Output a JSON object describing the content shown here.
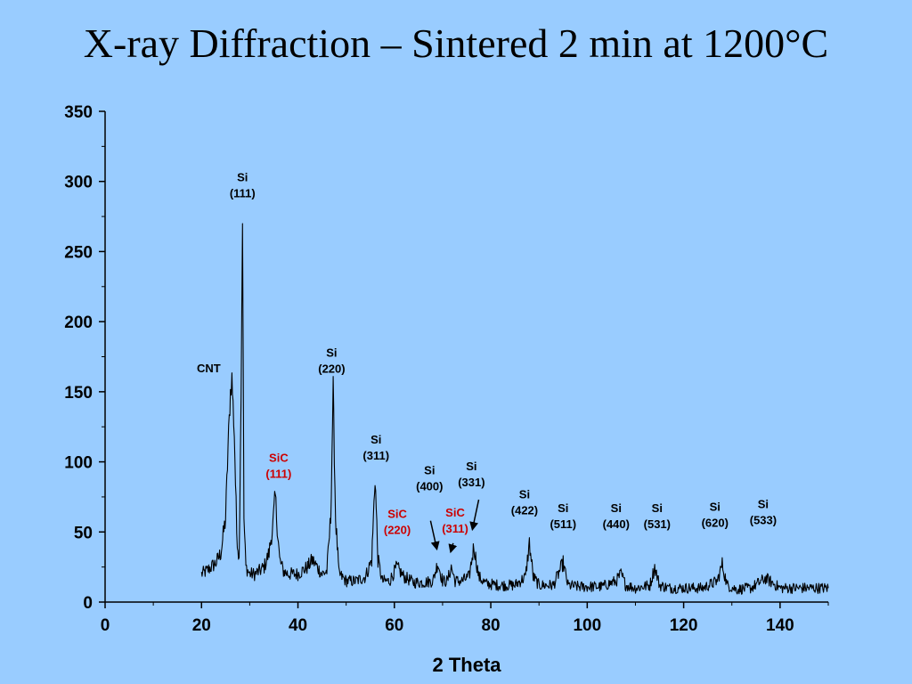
{
  "slide": {
    "title": "X-ray Diffraction – Sintered 2 min at 1200°C",
    "background": "#99ccff"
  },
  "chart_data": {
    "type": "line",
    "title": "",
    "xlabel": "2 Theta",
    "ylabel": "",
    "xlim": [
      0,
      150
    ],
    "ylim": [
      0,
      350
    ],
    "xticks": [
      0,
      20,
      40,
      60,
      80,
      100,
      120,
      140
    ],
    "yticks": [
      0,
      50,
      100,
      150,
      200,
      250,
      300,
      350
    ],
    "grid": false,
    "line_color": "#000000",
    "series": [
      {
        "x": [
          20,
          21,
          22,
          23,
          24,
          25,
          25.5,
          26,
          26.3,
          26.8,
          27.3,
          27.8,
          28.2,
          28.5,
          28.8,
          29.2,
          30,
          31,
          32,
          33,
          34,
          34.8,
          35.3,
          35.7,
          36.2,
          37,
          38,
          40,
          42,
          43,
          44,
          45,
          46,
          46.8,
          47.3,
          47.8,
          48.5,
          50,
          52,
          54,
          55.3,
          56,
          56.6,
          57.5,
          59,
          60.5,
          62,
          64,
          66,
          68,
          69,
          70,
          71,
          71.8,
          72.6,
          74,
          75.5,
          76.5,
          77.5,
          79,
          82,
          85,
          87.2,
          88,
          88.8,
          90,
          93,
          95,
          96,
          98,
          100,
          103,
          106,
          107,
          108,
          110,
          113,
          114,
          115,
          117,
          120,
          124,
          127,
          128,
          129,
          131,
          134,
          137,
          140,
          145,
          150
        ],
        "values": [
          20,
          22,
          25,
          28,
          35,
          60,
          110,
          150,
          160,
          120,
          50,
          30,
          150,
          275,
          60,
          25,
          20,
          20,
          22,
          25,
          35,
          55,
          75,
          55,
          30,
          22,
          20,
          20,
          25,
          30,
          25,
          20,
          22,
          60,
          153,
          60,
          20,
          15,
          15,
          18,
          30,
          90,
          30,
          15,
          15,
          25,
          18,
          14,
          14,
          15,
          28,
          15,
          15,
          25,
          15,
          15,
          18,
          40,
          18,
          13,
          12,
          12,
          18,
          42,
          18,
          12,
          12,
          28,
          12,
          11,
          11,
          11,
          15,
          20,
          12,
          10,
          12,
          25,
          12,
          10,
          10,
          10,
          15,
          27,
          12,
          9,
          10,
          17,
          10,
          10,
          10
        ]
      }
    ],
    "annotations": [
      {
        "id": "si-111",
        "lines": [
          "Si",
          "(111)"
        ],
        "x": 28.5,
        "y": 300,
        "color": "#000000"
      },
      {
        "id": "cnt",
        "lines": [
          "CNT"
        ],
        "x": 21.5,
        "y": 164,
        "color": "#000000"
      },
      {
        "id": "si-220",
        "lines": [
          "Si",
          "(220)"
        ],
        "x": 47,
        "y": 175,
        "color": "#000000"
      },
      {
        "id": "sic-111",
        "lines": [
          "SiC",
          "(111)"
        ],
        "x": 36,
        "y": 100,
        "color": "#cc0000"
      },
      {
        "id": "si-311",
        "lines": [
          "Si",
          "(311)"
        ],
        "x": 56.2,
        "y": 113,
        "color": "#000000"
      },
      {
        "id": "sic-220",
        "lines": [
          "SiC",
          "(220)"
        ],
        "x": 60.6,
        "y": 60,
        "color": "#cc0000"
      },
      {
        "id": "si-400",
        "lines": [
          "Si",
          "(400)"
        ],
        "x": 67.3,
        "y": 91,
        "color": "#000000"
      },
      {
        "id": "sic-311",
        "lines": [
          "SiC",
          "(311)"
        ],
        "x": 72.6,
        "y": 61,
        "color": "#cc0000"
      },
      {
        "id": "si-331",
        "lines": [
          "Si",
          "(331)"
        ],
        "x": 76,
        "y": 94,
        "color": "#000000"
      },
      {
        "id": "si-422",
        "lines": [
          "Si",
          "(422)"
        ],
        "x": 87,
        "y": 74,
        "color": "#000000"
      },
      {
        "id": "si-511",
        "lines": [
          "Si",
          "(511)"
        ],
        "x": 95,
        "y": 64,
        "color": "#000000"
      },
      {
        "id": "si-440",
        "lines": [
          "Si",
          "(440)"
        ],
        "x": 106,
        "y": 64,
        "color": "#000000"
      },
      {
        "id": "si-531",
        "lines": [
          "Si",
          "(531)"
        ],
        "x": 114.5,
        "y": 64,
        "color": "#000000"
      },
      {
        "id": "si-620",
        "lines": [
          "Si",
          "(620)"
        ],
        "x": 126.5,
        "y": 65,
        "color": "#000000"
      },
      {
        "id": "si-533",
        "lines": [
          "Si",
          "(533)"
        ],
        "x": 136.5,
        "y": 67,
        "color": "#000000"
      }
    ],
    "arrows": [
      {
        "id": "arrow-si-400",
        "from": [
          67.5,
          58
        ],
        "to": [
          68.8,
          38
        ]
      },
      {
        "id": "arrow-sic-311",
        "from": [
          72.2,
          42
        ],
        "to": [
          71.7,
          36
        ]
      },
      {
        "id": "arrow-si-331",
        "from": [
          77.5,
          73
        ],
        "to": [
          76.2,
          52
        ]
      }
    ]
  }
}
